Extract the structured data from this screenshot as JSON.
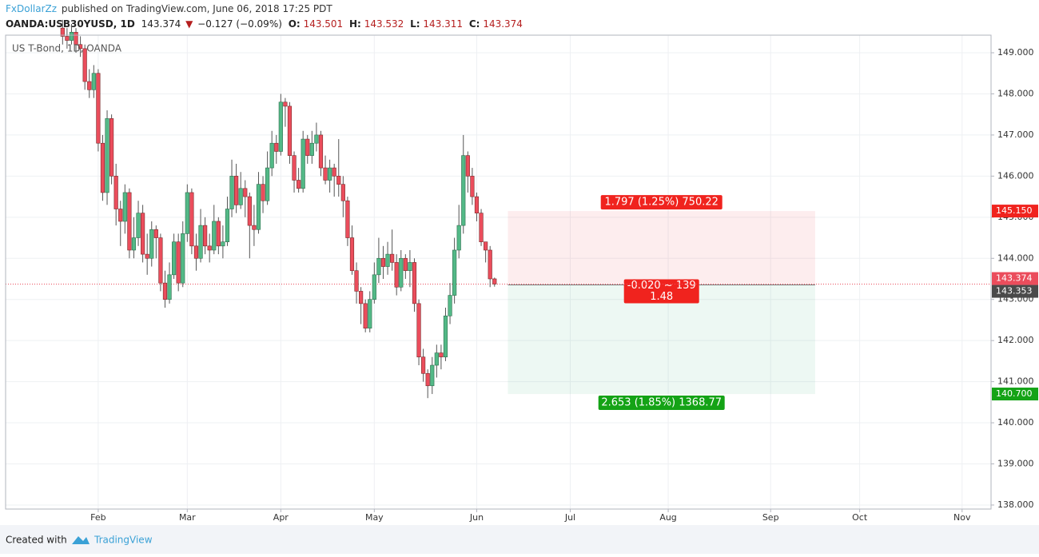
{
  "header": {
    "author": "FxDollarZz",
    "published": "published on TradingView.com, June 06, 2018 17:25 PDT",
    "symbol": "OANDA:USB30YUSD, 1D",
    "last": "143.374",
    "change_arrow": "▼",
    "change": "−0.127 (−0.09%)",
    "o_label": "O:",
    "o": "143.501",
    "h_label": "H:",
    "h": "143.532",
    "l_label": "L:",
    "l": "143.311",
    "c_label": "C:",
    "c": "143.374"
  },
  "footer": {
    "created": "Created with",
    "brand": "TradingView"
  },
  "chart_data": {
    "type": "candlestick",
    "legend": "US T-Bond, 1D, OANDA",
    "up_color": "#53b987",
    "down_color": "#eb4d5c",
    "grid": true,
    "x": [
      -8,
      -7,
      -6,
      -5,
      -4,
      -3,
      -2,
      -1,
      0,
      1,
      2,
      3,
      4,
      5,
      6,
      7,
      8,
      9,
      10,
      11,
      12,
      13,
      14,
      15,
      16,
      17,
      18,
      19,
      20,
      21,
      22,
      23,
      24,
      25,
      26,
      27,
      28,
      29,
      30,
      31,
      32,
      33,
      34,
      35,
      36,
      37,
      38,
      39,
      40,
      41,
      42,
      43,
      44,
      45,
      46,
      47,
      48,
      49,
      50,
      51,
      52,
      53,
      54,
      55,
      56,
      57,
      58,
      59,
      60,
      61,
      62,
      63,
      64,
      65,
      66,
      67,
      68,
      69,
      70,
      71,
      72,
      73,
      74,
      75,
      76,
      77,
      78,
      79,
      80,
      81,
      82,
      83,
      84,
      85,
      86,
      87,
      88,
      89
    ],
    "open": [
      149.6,
      149.4,
      149.3,
      149.5,
      149.2,
      149.1,
      148.3,
      148.1,
      148.5,
      146.8,
      145.6,
      147.4,
      146.0,
      145.2,
      144.9,
      145.6,
      144.2,
      144.5,
      145.1,
      144.1,
      144.0,
      144.7,
      144.5,
      143.4,
      143.0,
      143.6,
      144.4,
      143.4,
      144.6,
      145.6,
      144.3,
      144.0,
      144.8,
      144.3,
      144.2,
      144.9,
      144.3,
      144.4,
      145.2,
      146.0,
      145.3,
      145.7,
      145.5,
      144.8,
      144.7,
      145.8,
      145.4,
      146.2,
      146.8,
      146.6,
      147.8,
      147.7,
      146.5,
      145.9,
      145.7,
      146.9,
      146.5,
      146.8,
      147.0,
      146.2,
      145.9,
      146.2,
      146.0,
      145.8,
      145.4,
      144.5,
      143.7,
      143.2,
      142.9,
      142.3,
      143.0,
      143.6,
      144.0,
      143.8,
      144.1,
      143.9,
      143.3,
      144.0,
      143.7,
      143.9,
      142.9,
      141.6,
      141.2,
      140.9,
      141.4,
      141.7,
      141.6,
      142.6,
      143.1,
      144.2,
      144.8,
      146.5,
      146.0,
      145.5,
      145.1,
      144.4,
      144.2,
      143.501
    ],
    "high": [
      149.8,
      149.6,
      149.7,
      149.6,
      149.4,
      149.2,
      148.6,
      148.7,
      148.6,
      147.0,
      147.6,
      147.5,
      146.3,
      145.4,
      145.8,
      145.7,
      145.0,
      145.4,
      145.3,
      144.6,
      144.9,
      144.8,
      144.6,
      143.7,
      143.9,
      144.6,
      144.6,
      144.9,
      145.8,
      145.7,
      144.6,
      145.2,
      145.0,
      144.6,
      145.3,
      145.0,
      144.8,
      145.5,
      146.4,
      146.3,
      146.1,
      145.9,
      145.6,
      145.3,
      146.1,
      146.0,
      146.6,
      147.1,
      147.0,
      148.0,
      147.9,
      147.8,
      146.6,
      146.2,
      147.1,
      147.0,
      147.1,
      147.3,
      147.1,
      146.5,
      146.4,
      146.3,
      146.9,
      146.0,
      145.5,
      144.8,
      143.9,
      143.3,
      143.0,
      143.2,
      143.9,
      144.5,
      144.3,
      144.4,
      144.7,
      144.1,
      144.2,
      144.1,
      144.2,
      144.0,
      143.0,
      141.8,
      141.3,
      141.6,
      141.9,
      141.9,
      142.8,
      143.4,
      144.5,
      145.3,
      147.0,
      146.6,
      146.2,
      145.6,
      145.2,
      144.4,
      144.3,
      143.532
    ],
    "low": [
      149.2,
      149.1,
      149.2,
      149.0,
      148.9,
      148.1,
      147.9,
      147.9,
      146.6,
      145.4,
      145.3,
      145.8,
      144.8,
      144.3,
      144.6,
      144.0,
      144.0,
      144.3,
      143.9,
      143.6,
      143.8,
      144.0,
      143.2,
      142.8,
      142.9,
      143.5,
      143.2,
      143.3,
      144.4,
      144.1,
      143.7,
      143.9,
      144.1,
      143.9,
      144.1,
      144.1,
      144.0,
      144.3,
      145.0,
      145.1,
      145.2,
      145.0,
      144.0,
      144.3,
      144.6,
      145.1,
      145.3,
      146.0,
      146.3,
      146.5,
      147.2,
      146.3,
      145.6,
      145.6,
      145.6,
      146.3,
      146.3,
      146.6,
      146.0,
      145.8,
      145.6,
      145.5,
      145.5,
      145.0,
      144.3,
      143.6,
      142.9,
      142.4,
      142.2,
      142.2,
      142.9,
      143.4,
      143.5,
      143.6,
      143.7,
      143.1,
      143.2,
      143.5,
      143.3,
      142.7,
      141.4,
      141.0,
      140.6,
      140.7,
      141.1,
      141.3,
      141.5,
      142.4,
      142.9,
      144.0,
      144.6,
      145.6,
      145.3,
      144.9,
      144.3,
      143.9,
      143.3,
      143.311
    ],
    "close": [
      149.4,
      149.3,
      149.5,
      149.2,
      149.1,
      148.3,
      148.1,
      148.5,
      146.8,
      145.6,
      147.4,
      146.0,
      145.2,
      144.9,
      145.6,
      144.2,
      144.5,
      145.1,
      144.1,
      144.0,
      144.7,
      144.5,
      143.4,
      143.0,
      143.6,
      144.4,
      143.4,
      144.6,
      145.6,
      144.3,
      144.0,
      144.8,
      144.3,
      144.2,
      144.9,
      144.3,
      144.4,
      145.2,
      146.0,
      145.3,
      145.7,
      145.5,
      144.8,
      144.7,
      145.8,
      145.4,
      146.2,
      146.8,
      146.6,
      147.8,
      147.7,
      146.5,
      145.9,
      145.7,
      146.9,
      146.5,
      146.8,
      147.0,
      146.2,
      145.9,
      146.2,
      146.0,
      145.8,
      145.4,
      144.5,
      143.7,
      143.2,
      142.9,
      142.3,
      143.0,
      143.6,
      144.0,
      143.8,
      144.1,
      143.9,
      143.3,
      144.0,
      143.7,
      143.9,
      142.9,
      141.6,
      141.2,
      140.9,
      141.4,
      141.7,
      141.6,
      142.6,
      143.1,
      144.2,
      144.8,
      146.5,
      146.0,
      145.5,
      145.1,
      144.4,
      144.2,
      143.5,
      143.374
    ],
    "xlim": [
      -20.8,
      200.5
    ],
    "xticks": [
      {
        "value": 0,
        "label": "Feb"
      },
      {
        "value": 20,
        "label": "Mar"
      },
      {
        "value": 41,
        "label": "Apr"
      },
      {
        "value": 62,
        "label": "May"
      },
      {
        "value": 85,
        "label": "Jun"
      },
      {
        "value": 106,
        "label": "Jul"
      },
      {
        "value": 128,
        "label": "Aug"
      },
      {
        "value": 151,
        "label": "Sep"
      },
      {
        "value": 171,
        "label": "Oct"
      },
      {
        "value": 194,
        "label": "Nov"
      }
    ],
    "ylim": [
      137.902,
      149.428
    ],
    "yticks": [
      {
        "value": 138,
        "label": "138.000"
      },
      {
        "value": 139,
        "label": "139.000"
      },
      {
        "value": 140,
        "label": "140.000"
      },
      {
        "value": 141,
        "label": "141.000"
      },
      {
        "value": 142,
        "label": "142.000"
      },
      {
        "value": 143,
        "label": "143.000"
      },
      {
        "value": 144,
        "label": "144.000"
      },
      {
        "value": 145,
        "label": "145.000"
      },
      {
        "value": 146,
        "label": "146.000"
      },
      {
        "value": 147,
        "label": "147.000"
      },
      {
        "value": 148,
        "label": "148.000"
      },
      {
        "value": 149,
        "label": "149.000"
      }
    ],
    "last_price": {
      "value": 143.374,
      "label": "143.374"
    },
    "position": {
      "start_x": 92,
      "end_x": 161,
      "stop": {
        "value": 145.15,
        "label": "145.150"
      },
      "entry": {
        "value": 143.353,
        "label": "143.353"
      },
      "target": {
        "value": 140.7,
        "label": "140.700"
      },
      "stop_text": "1.797 (1.25%) 750.22",
      "entry_text": "-0.020 ~ 139",
      "ratio_text": "1.48",
      "target_text": "2.653 (1.85%) 1368.77"
    }
  }
}
